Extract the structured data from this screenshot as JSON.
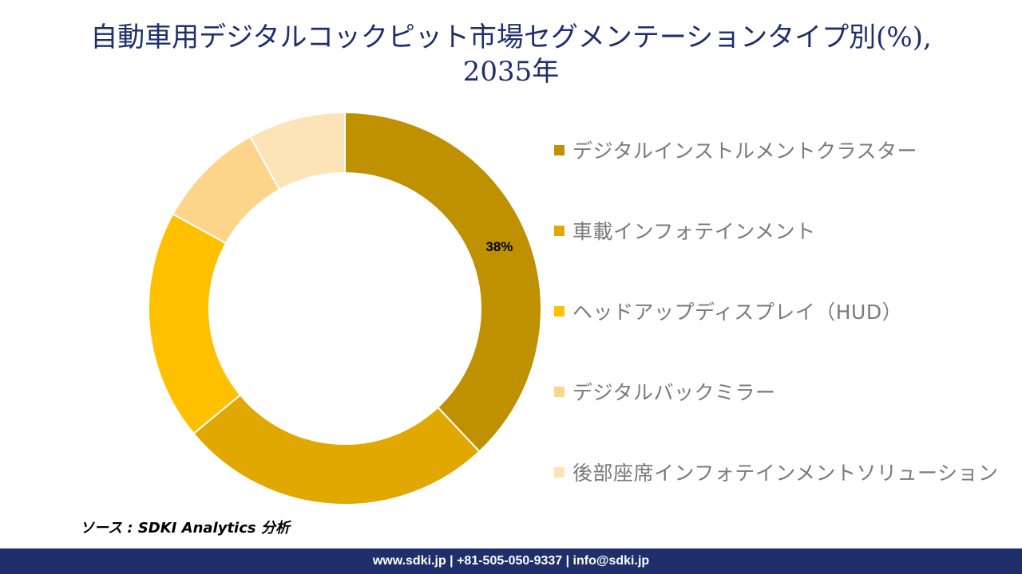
{
  "title": {
    "line1": "自動車用デジタルコックピット市場セグメンテーションタイプ別(%),",
    "line2": "2035年"
  },
  "chart_data": {
    "type": "pie",
    "donut": true,
    "categories": [
      "デジタルインストルメントクラスター",
      "車載インフォテインメント",
      "ヘッドアップディスプレイ（HUD）",
      "デジタルバックミラー",
      "後部座席インフォテインメントソリューション"
    ],
    "values": [
      38,
      26,
      19,
      9,
      8
    ],
    "data_labels": [
      "38%",
      "",
      "",
      "",
      ""
    ],
    "colors": [
      "#bf9000",
      "#e0a800",
      "#ffc000",
      "#fcd58a",
      "#fde4b8"
    ],
    "legend_position": "right"
  },
  "source": "ソース : SDKI Analytics 分析",
  "footer": "www.sdki.jp | +81-505-050-9337 | info@sdki.jp"
}
